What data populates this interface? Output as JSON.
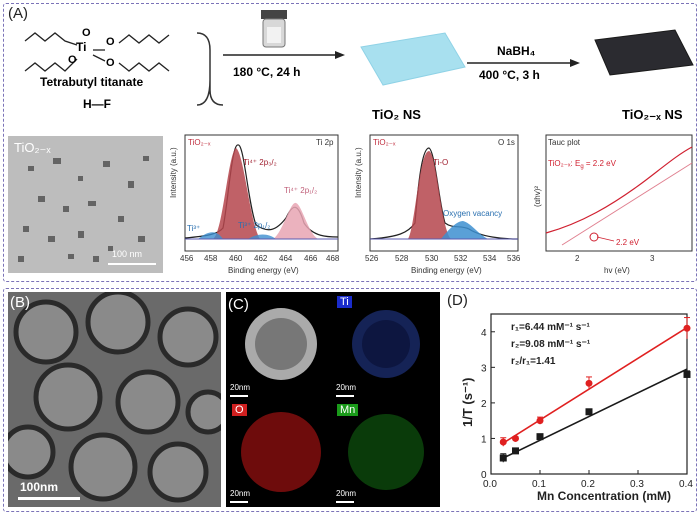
{
  "panel_a": {
    "label": "(A)",
    "precursor_name": "Tetrabutyl titanate",
    "ti_atom": "Ti",
    "o_atom": "O",
    "hf": "H—F",
    "step1": "180 °C, 24 h",
    "product1": "TiO₂ NS",
    "reagent": "NaBH₄",
    "step2": "400 °C, 3 h",
    "product2": "TiO₂₋ₓ NS",
    "tem_label": "TiO₂₋ₓ",
    "tem_scale": "100 nm",
    "xps_ti": {
      "sample": "TiO₂₋ₓ",
      "title": "Ti 2p",
      "ylabel": "Intensity (a.u.)",
      "xlabel": "Binding energy (eV)",
      "ticks": [
        "456",
        "458",
        "460",
        "462",
        "464",
        "466",
        "468"
      ],
      "ann1": "Ti⁴⁺ 2p₃/₂",
      "ann2": "Ti⁴⁺ 2p₁/₂",
      "ann3": "Ti³⁺ 2p₁/₂",
      "ann4": "Ti³⁺"
    },
    "xps_o": {
      "sample": "TiO₂₋ₓ",
      "title": "O 1s",
      "ylabel": "Intensity (a.u.)",
      "xlabel": "Binding energy (eV)",
      "ticks": [
        "526",
        "528",
        "530",
        "532",
        "534",
        "536"
      ],
      "ann1": "Ti-O",
      "ann2": "Oxygen vacancy"
    },
    "tauc": {
      "title": "Tauc plot",
      "ylabel": "(αhv)²",
      "xlabel": "hv (eV)",
      "eq_prefix": "TiO₂₋ₓ: E",
      "eq_sub": "g",
      "eq_value": " = 2.2 eV",
      "point_label": "2.2 eV",
      "ticks": [
        "2",
        "3"
      ]
    }
  },
  "panel_b": {
    "label": "(B)",
    "scale": "100nm"
  },
  "panel_c": {
    "label": "(C)",
    "ch_ti": "Ti",
    "ch_o": "O",
    "ch_mn": "Mn",
    "scale": "20nm"
  },
  "panel_d": {
    "label": "(D)",
    "r1": "r₁=6.44 mM⁻¹ s⁻¹",
    "r2": "r₂=9.08 mM⁻¹ s⁻¹",
    "ratio": "r₂/r₁=1.41",
    "colors": {
      "r1": "#1a1a1a",
      "r2": "#e02020"
    }
  },
  "chart_data": {
    "type": "scatter",
    "xlabel": "Mn Concentration (mM)",
    "ylabel": "1/T (s⁻¹)",
    "xlim": [
      0.0,
      0.4
    ],
    "ylim": [
      0,
      4.5
    ],
    "xticks": [
      "0.0",
      "0.1",
      "0.2",
      "0.3",
      "0.4"
    ],
    "yticks": [
      "0",
      "1",
      "2",
      "3",
      "4"
    ],
    "series": [
      {
        "x": [
          0.025,
          0.05,
          0.1,
          0.2,
          0.4
        ],
        "values": [
          0.9,
          1.0,
          1.5,
          2.55,
          4.1
        ],
        "err": [
          0.12,
          0.05,
          0.1,
          0.18,
          0.3
        ],
        "color": "#e02020"
      },
      {
        "x": [
          0.025,
          0.05,
          0.1,
          0.2,
          0.4
        ],
        "values": [
          0.45,
          0.65,
          1.05,
          1.75,
          2.8
        ],
        "err": [
          0.12,
          0.05,
          0.05,
          0.05,
          0.1
        ],
        "color": "#1a1a1a"
      }
    ],
    "fits": [
      {
        "x": [
          0.025,
          0.4
        ],
        "values": [
          0.87,
          4.12
        ],
        "color": "#e02020"
      },
      {
        "x": [
          0.025,
          0.4
        ],
        "values": [
          0.45,
          2.95
        ],
        "color": "#1a1a1a"
      }
    ]
  }
}
